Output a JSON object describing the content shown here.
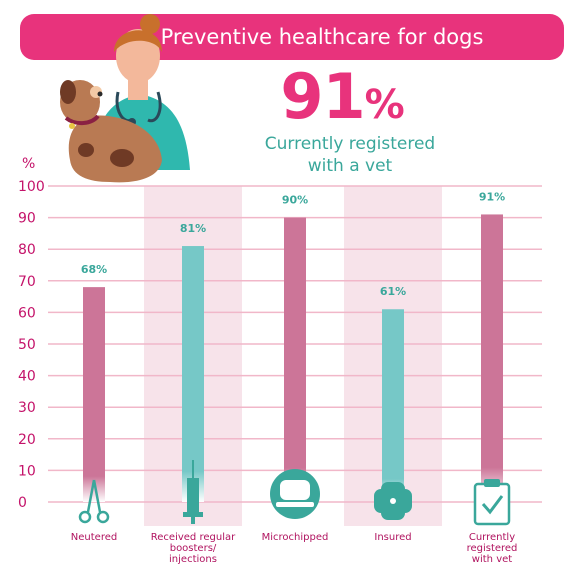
{
  "banner": {
    "title": "Preventive healthcare for dogs"
  },
  "headline": {
    "value": "91",
    "unit": "%",
    "subtitle_line1": "Currently registered",
    "subtitle_line2": "with a vet"
  },
  "colors": {
    "pink": "#e8337c",
    "bar_pink": "#cc7598",
    "bar_teal": "#76c8c7",
    "teal": "#3aa79b",
    "grid": "#f1b7c9",
    "band": "#f7e3ea",
    "axis_text": "#c4136a"
  },
  "chart_data": {
    "type": "bar",
    "ylabel": "%",
    "ylim": [
      0,
      100
    ],
    "yticks": [
      0,
      10,
      20,
      30,
      40,
      50,
      60,
      70,
      80,
      90,
      100
    ],
    "categories": [
      "Neutered",
      "Received regular boosters/ injections",
      "Microchipped",
      "Insured",
      "Currently registered with vet"
    ],
    "category_lines": [
      [
        "Neutered"
      ],
      [
        "Received regular",
        "boosters/",
        "injections"
      ],
      [
        "Microchipped"
      ],
      [
        "Insured"
      ],
      [
        "Currently",
        "registered",
        "with vet"
      ]
    ],
    "values": [
      68,
      81,
      90,
      61,
      91
    ],
    "value_labels": [
      "68%",
      "81%",
      "90%",
      "61%",
      "91%"
    ],
    "bar_colors": [
      "#cc7598",
      "#76c8c7",
      "#cc7598",
      "#76c8c7",
      "#cc7598"
    ],
    "icons": [
      "scissors-icon",
      "syringe-icon",
      "microchip-icon",
      "plaster-icon",
      "clipboard-check-icon"
    ],
    "grid": true
  }
}
